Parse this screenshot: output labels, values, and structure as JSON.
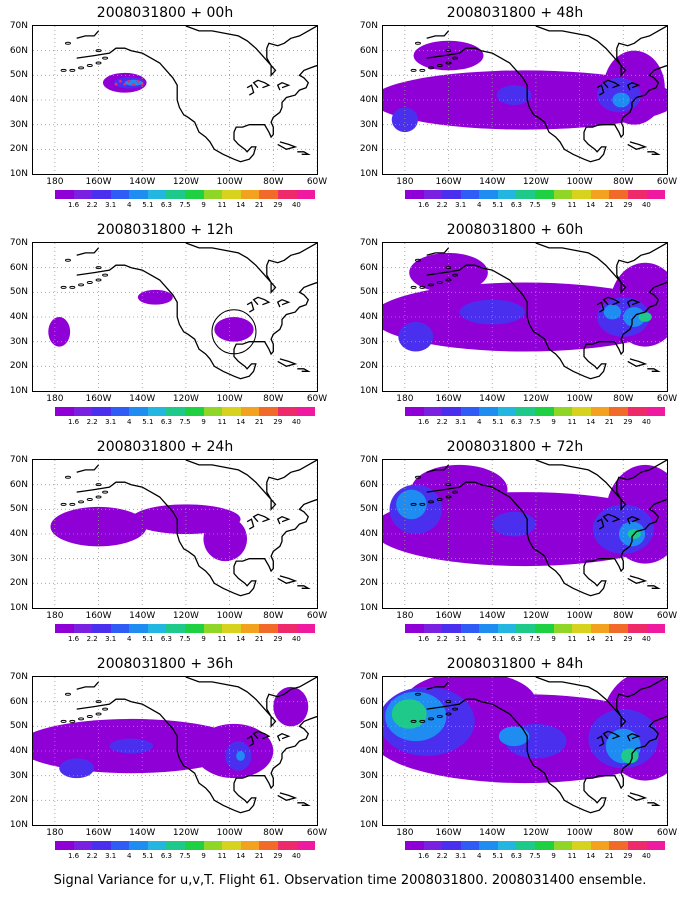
{
  "caption": "Signal Variance for u,v,T. Flight 61. Observation time 2008031800. 2008031400 ensemble.",
  "lat_labels": [
    "70N",
    "60N",
    "50N",
    "40N",
    "30N",
    "20N",
    "10N"
  ],
  "lon_labels": [
    "180",
    "160W",
    "140W",
    "120W",
    "100W",
    "80W",
    "60W"
  ],
  "colorbar_labels": [
    "1.6",
    "2.2",
    "3.1",
    "4",
    "5.1",
    "6.3",
    "7.5",
    "9",
    "11",
    "14",
    "21",
    "29",
    "40"
  ],
  "colorbar_colors": [
    "#8f00d6",
    "#7a20e0",
    "#4a30ee",
    "#2f5cf5",
    "#1f8cf2",
    "#22b6e0",
    "#1fc98a",
    "#20d043",
    "#8fd626",
    "#d6d21e",
    "#f2a21f",
    "#f26a2a",
    "#ee2a6a",
    "#f01aa0"
  ],
  "panels": [
    {
      "title": "2008031800 + 00h",
      "hour": 0
    },
    {
      "title": "2008031800 + 48h",
      "hour": 48
    },
    {
      "title": "2008031800 + 12h",
      "hour": 12
    },
    {
      "title": "2008031800 + 60h",
      "hour": 60
    },
    {
      "title": "2008031800 + 24h",
      "hour": 24
    },
    {
      "title": "2008031800 + 72h",
      "hour": 72
    },
    {
      "title": "2008031800 + 36h",
      "hour": 36
    },
    {
      "title": "2008031800 + 84h",
      "hour": 84
    }
  ]
}
